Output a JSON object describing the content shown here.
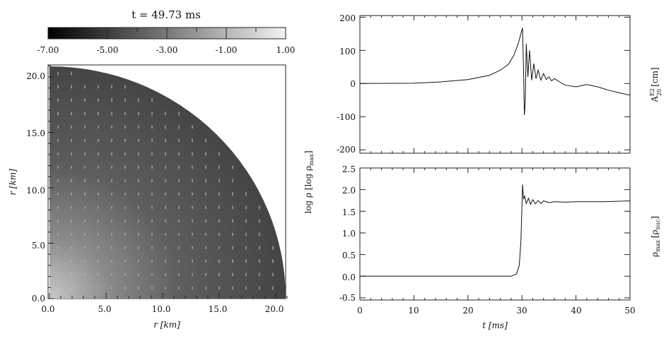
{
  "figure": {
    "time_label": "t = 49.73 ms",
    "colorbar": {
      "ticks": [
        "-7.00",
        "-5.00",
        "-3.00",
        "-1.00",
        "1.00"
      ],
      "range": [
        -7.0,
        1.0
      ],
      "label": "log ρ [log ρ",
      "label_sub": "max",
      "label_close": "]"
    }
  },
  "chart_data": [
    {
      "type": "heatmap",
      "description_of_field": "log density in meridional plane (quarter disk) with velocity arrows",
      "xlabel": "r [km]",
      "ylabel": "r [km]",
      "xlim": [
        0,
        21
      ],
      "ylim": [
        0,
        21
      ],
      "xticks": [
        "0.0",
        "5.0",
        "10.0",
        "15.0",
        "20.0"
      ],
      "yticks": [
        "0.0",
        "5.0",
        "10.0",
        "15.0",
        "20.0"
      ],
      "surface_radius_km": 21.0,
      "center_log_rho": -0.2,
      "surface_log_rho": -6.2
    },
    {
      "type": "line",
      "xlabel": "t [ms]",
      "ylabel": "A",
      "ylabel_sup": "E2",
      "ylabel_sub": "20",
      "ylabel_unit": "[cm]",
      "xlim": [
        0,
        50
      ],
      "ylim": [
        -210,
        205
      ],
      "yticks": [
        "200",
        "100",
        "0",
        "-100",
        "-200"
      ],
      "x": [
        0,
        10,
        15,
        20,
        24,
        26,
        27.5,
        28.5,
        29.3,
        29.8,
        30.1,
        30.3,
        30.45,
        30.6,
        30.8,
        31.1,
        31.4,
        31.8,
        32.2,
        32.6,
        33.0,
        33.5,
        34.0,
        34.5,
        35.0,
        35.5,
        36.0,
        37.0,
        38.0,
        40.0,
        42.0,
        44.0,
        46.0,
        48.0,
        50.0
      ],
      "y": [
        0,
        1,
        5,
        12,
        25,
        40,
        58,
        85,
        120,
        150,
        168,
        40,
        -95,
        -60,
        120,
        20,
        100,
        10,
        60,
        15,
        40,
        10,
        30,
        12,
        20,
        8,
        15,
        5,
        -5,
        -10,
        -3,
        -10,
        -20,
        -28,
        -35
      ]
    },
    {
      "type": "line",
      "xlabel": "t [ms]",
      "ylabel": "ρ",
      "ylabel_sub": "max",
      "ylabel_unit": "[ρ",
      "ylabel_unit_sub": "nuc",
      "ylabel_close": "]",
      "xlim": [
        0,
        50
      ],
      "ylim": [
        -0.55,
        2.5
      ],
      "xticks": [
        "0",
        "10",
        "20",
        "30",
        "40",
        "50"
      ],
      "yticks": [
        "2.5",
        "2.0",
        "1.5",
        "1.0",
        "0.5",
        "0.0",
        "-0.5"
      ],
      "x": [
        0,
        10,
        20,
        28,
        29.0,
        29.5,
        29.8,
        30.0,
        30.1,
        30.2,
        30.3,
        30.5,
        30.8,
        31.2,
        31.6,
        32.0,
        32.5,
        33.0,
        33.5,
        34.0,
        35.0,
        36.0,
        38.0,
        40.0,
        45.0,
        50.0
      ],
      "y": [
        0,
        0,
        0,
        0,
        0.05,
        0.25,
        0.8,
        1.6,
        2.12,
        1.95,
        1.78,
        1.85,
        1.68,
        1.8,
        1.66,
        1.77,
        1.67,
        1.75,
        1.68,
        1.74,
        1.7,
        1.72,
        1.71,
        1.72,
        1.72,
        1.74
      ]
    }
  ]
}
